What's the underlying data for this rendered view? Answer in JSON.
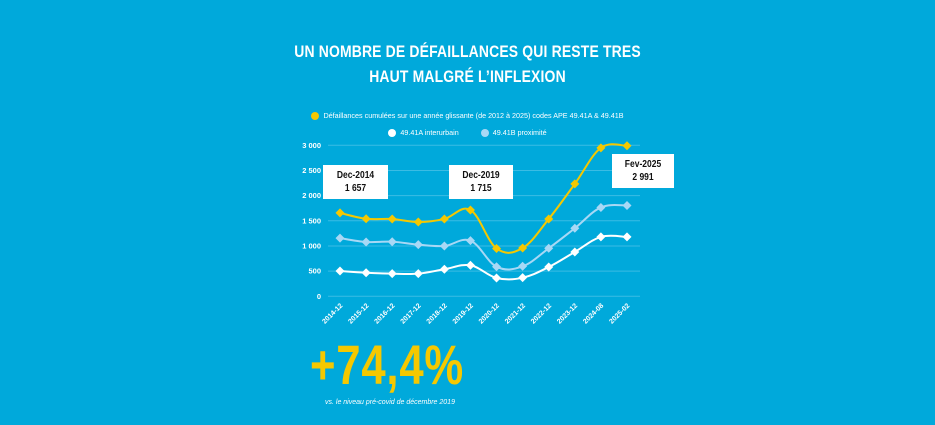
{
  "title": {
    "line1": "UN NOMBRE DE DÉFAILLANCES QUI RESTE TRES",
    "line2": "HAUT MALGRÉ L’INFLEXION"
  },
  "colors": {
    "background": "#00A9DB",
    "cumulative": "#F5C800",
    "interurbain": "#FFFFFF",
    "proximite": "#A8D8F5",
    "gridline": "#3BBCE4"
  },
  "callouts": [
    {
      "label": "Dec-2014",
      "value": "1 657"
    },
    {
      "label": "Dec-2019",
      "value": "1 715"
    },
    {
      "label": "Fev-2025",
      "value": "2 991"
    }
  ],
  "highlight": {
    "value": "+74,4%",
    "note": "vs. le niveau pré-covid de décembre 2019"
  },
  "chart_data": {
    "type": "line",
    "title": "UN NOMBRE DE DÉFAILLANCES QUI RESTE TRES HAUT MALGRÉ L’INFLEXION",
    "xlabel": "",
    "ylabel": "",
    "ylim": [
      0,
      3000
    ],
    "yticks": [
      0,
      500,
      1000,
      1500,
      2000,
      2500,
      3000
    ],
    "ytick_labels": [
      "0",
      "500",
      "1 000",
      "1 500",
      "2 000",
      "2 500",
      "3 000"
    ],
    "grid": true,
    "legend_position": "top-center",
    "categories": [
      "2014-12",
      "2015-12",
      "2016-12",
      "2017-12",
      "2018-12",
      "2019-12",
      "2020-12",
      "2021-12",
      "2022-12",
      "2023-12",
      "2024-08",
      "2025-02"
    ],
    "series": [
      {
        "name": "Défaillances cumulées sur une année glissante (de 2012 à 2025) codes APE 49.41A & 49.41B",
        "color": "#F5C800",
        "values": [
          1657,
          1540,
          1535,
          1475,
          1537,
          1715,
          950,
          960,
          1537,
          2233,
          2950,
          2991
        ]
      },
      {
        "name": "49.41A interurbain",
        "color": "#FFFFFF",
        "values": [
          503,
          469,
          450,
          450,
          537,
          616,
          364,
          370,
          582,
          881,
          1180,
          1180
        ]
      },
      {
        "name": "49.41B proximité",
        "color": "#A8D8F5",
        "values": [
          1157,
          1080,
          1085,
          1026,
          1000,
          1105,
          588,
          596,
          954,
          1352,
          1765,
          1805
        ]
      }
    ],
    "annotations": [
      {
        "x": "2014-12",
        "text": "Dec-2014 1 657"
      },
      {
        "x": "2019-12",
        "text": "Dec-2019 1 715"
      },
      {
        "x": "2025-02",
        "text": "Fev-2025 2 991"
      }
    ]
  }
}
